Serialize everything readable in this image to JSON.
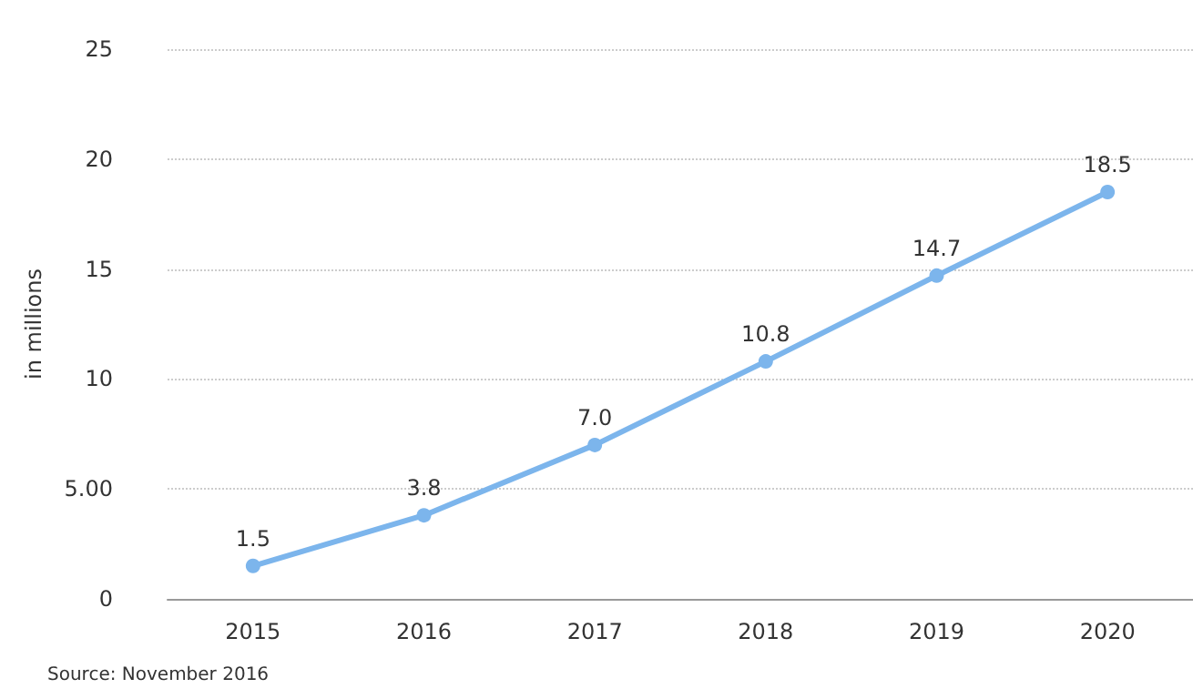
{
  "chart_data": {
    "type": "line",
    "ylabel": "in millions",
    "categories": [
      "2015",
      "2016",
      "2017",
      "2018",
      "2019",
      "2020"
    ],
    "values": [
      1.5,
      3.8,
      7.0,
      10.8,
      14.7,
      18.5
    ],
    "value_labels": [
      "1.5",
      "3.8",
      "7.0",
      "10.8",
      "14.7",
      "18.5"
    ],
    "color": "#7cb5ec",
    "marker": "circle",
    "ylim": [
      0,
      25
    ],
    "yticks": [
      0,
      {
        "value": 5,
        "label": "5.00"
      },
      10,
      15,
      20,
      25
    ],
    "grid": "y",
    "annotations": [
      "Source: November 2016"
    ]
  }
}
